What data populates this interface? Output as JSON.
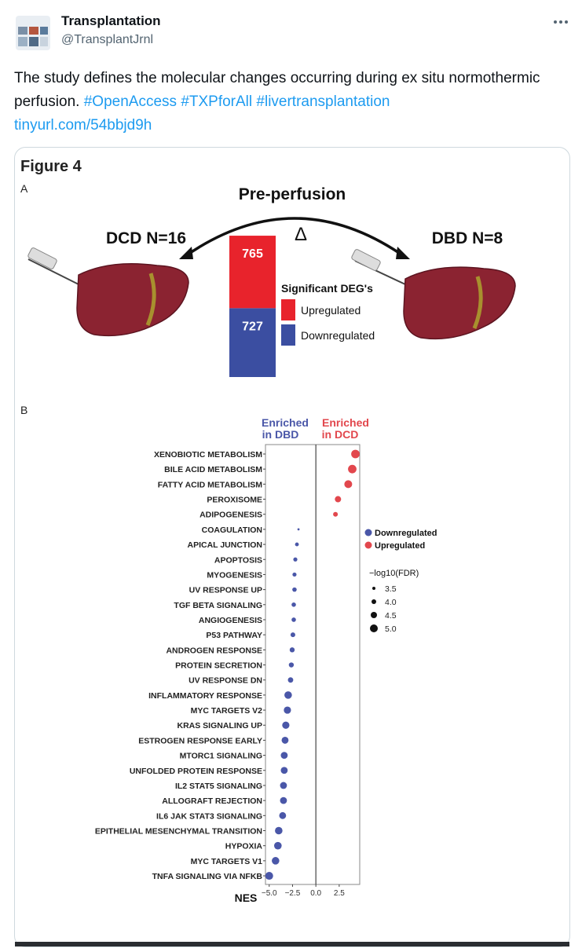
{
  "tweet": {
    "author": {
      "name": "Transplantation",
      "handle": "@TransplantJrnl"
    },
    "text": "The study defines the molecular changes occurring during ex situ normothermic perfusion.",
    "hashtags": [
      "#OpenAccess",
      "#TXPforAll",
      "#livertransplantation"
    ],
    "link": "tinyurl.com/54bbjd9h"
  },
  "figure": {
    "title": "Figure 4",
    "panel_a": {
      "label": "A",
      "title": "Pre-perfusion",
      "symbol": "Δ",
      "left_group": "DCD N=16",
      "right_group": "DBD N=8",
      "chart_data": {
        "type": "stacked_bar",
        "legend_title": "Significant DEG's",
        "series": [
          {
            "name": "Upregulated",
            "color": "#e8232c",
            "values": [
              765
            ]
          },
          {
            "name": "Downregulated",
            "color": "#3b4ea1",
            "values": [
              727
            ]
          }
        ]
      }
    },
    "panel_b": {
      "label": "B",
      "chart_data": {
        "type": "dot",
        "annotations": {
          "enriched_dbd": [
            "Enriched",
            "in DBD"
          ],
          "enriched_dcd": [
            "Enriched",
            "in DCD"
          ]
        },
        "categories": [
          "XENOBIOTIC METABOLISM",
          "BILE ACID METABOLISM",
          "FATTY ACID METABOLISM",
          "PEROXISOME",
          "ADIPOGENESIS",
          "COAGULATION",
          "APICAL JUNCTION",
          "APOPTOSIS",
          "MYOGENESIS",
          "UV RESPONSE UP",
          "TGF BETA SIGNALING",
          "ANGIOGENESIS",
          "P53 PATHWAY",
          "ANDROGEN RESPONSE",
          "PROTEIN SECRETION",
          "UV RESPONSE DN",
          "INFLAMMATORY RESPONSE",
          "MYC TARGETS V2",
          "KRAS SIGNALING UP",
          "ESTROGEN RESPONSE EARLY",
          "MTORC1 SIGNALING",
          "UNFOLDED PROTEIN RESPONSE",
          "IL2 STAT5 SIGNALING",
          "ALLOGRAFT REJECTION",
          "IL6 JAK STAT3 SIGNALING",
          "EPITHELIAL MESENCHYMAL TRANSITION",
          "HYPOXIA",
          "MYC TARGETS V1",
          "TNFA SIGNALING VIA NFKB"
        ],
        "values": [
          4.24,
          3.9,
          3.47,
          2.37,
          2.1,
          -1.86,
          -2.03,
          -2.2,
          -2.29,
          -2.29,
          -2.37,
          -2.37,
          -2.46,
          -2.54,
          -2.63,
          -2.71,
          -2.97,
          -3.05,
          -3.22,
          -3.3,
          -3.39,
          -3.39,
          -3.47,
          -3.47,
          -3.56,
          -3.98,
          -4.07,
          -4.32,
          -5.0
        ],
        "sizes": [
          5.2,
          5.2,
          5.0,
          4.5,
          4.0,
          3.2,
          3.7,
          3.8,
          3.8,
          3.9,
          3.9,
          3.9,
          4.0,
          4.1,
          4.1,
          4.2,
          4.9,
          4.8,
          4.8,
          4.7,
          4.7,
          4.7,
          4.7,
          4.7,
          4.7,
          4.9,
          4.9,
          4.9,
          5.0
        ],
        "xlabel": "NES",
        "xlim": [
          -5.4,
          4.7
        ],
        "xticks": [
          {
            "value": -5.0,
            "label": "−5.0"
          },
          {
            "value": -2.5,
            "label": "−2.5"
          },
          {
            "value": 0.0,
            "label": "0.0"
          },
          2.5
        ],
        "legend": [
          {
            "name": "Downregulated",
            "color": "#4a57a8"
          },
          {
            "name": "Upregulated",
            "color": "#e2474d"
          }
        ],
        "size_legend": {
          "title": "−log10(FDR)",
          "values": [
            3.5,
            4.0,
            4.5,
            5.0
          ]
        }
      }
    }
  }
}
